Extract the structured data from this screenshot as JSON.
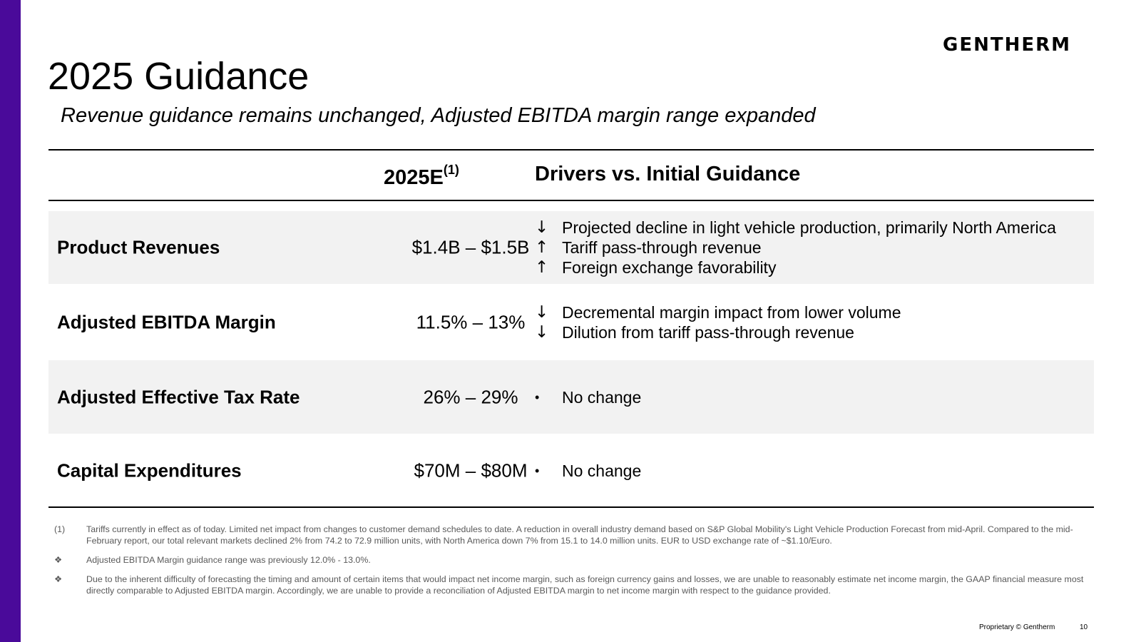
{
  "brand": {
    "logo_text": "GENTHERM",
    "accent_color": "#4a0a9a"
  },
  "slide": {
    "title": "2025 Guidance",
    "subtitle": "Revenue guidance remains unchanged, Adjusted EBITDA margin range expanded"
  },
  "table": {
    "col_value_header": "2025E",
    "col_value_note": "(1)",
    "col_drivers_header": "Drivers vs. Initial Guidance",
    "rows": [
      {
        "metric": "Product Revenues",
        "value": "$1.4B – $1.5B",
        "drivers": [
          {
            "icon": "arrow-down-icon",
            "glyph": "↓",
            "text": "Projected decline in light vehicle production, primarily North America"
          },
          {
            "icon": "arrow-up-icon",
            "glyph": "↑",
            "text": "Tariff pass-through revenue"
          },
          {
            "icon": "arrow-up-icon",
            "glyph": "↑",
            "text": "Foreign exchange favorability"
          }
        ]
      },
      {
        "metric": "Adjusted EBITDA Margin",
        "value": "11.5% – 13%",
        "drivers": [
          {
            "icon": "arrow-down-icon",
            "glyph": "↓",
            "text": "Decremental margin impact from lower volume"
          },
          {
            "icon": "arrow-down-icon",
            "glyph": "↓",
            "text": "Dilution from tariff pass-through revenue"
          }
        ]
      },
      {
        "metric": "Adjusted Effective Tax Rate",
        "value": "26% – 29%",
        "drivers": [
          {
            "icon": "bullet-icon",
            "glyph": "•",
            "text": "No change"
          }
        ]
      },
      {
        "metric": "Capital Expenditures",
        "value": "$70M – $80M",
        "drivers": [
          {
            "icon": "bullet-icon",
            "glyph": "•",
            "text": "No change"
          }
        ]
      }
    ]
  },
  "footnotes": [
    {
      "mark": "(1)",
      "text": "Tariffs currently in effect as of today. Limited net impact from changes to customer demand schedules to date. A reduction in overall industry demand based on S&P Global Mobility's Light Vehicle Production Forecast from mid-April. Compared to the mid-February report, our total relevant markets declined 2% from 74.2 to 72.9 million units, with North America down 7% from 15.1 to 14.0 million units. EUR to USD exchange rate of ~$1.10/Euro."
    },
    {
      "mark": "❖",
      "text": "Adjusted EBITDA Margin guidance range was previously 12.0% - 13.0%."
    },
    {
      "mark": "❖",
      "text": "Due to the inherent difficulty of forecasting the timing and amount of certain items that would impact net income margin, such as foreign currency gains and losses, we are unable to reasonably estimate net income margin, the GAAP financial measure most directly comparable to Adjusted EBITDA margin. Accordingly, we are unable to provide a reconciliation of Adjusted EBITDA margin to net income margin with respect to the guidance provided."
    }
  ],
  "footer": {
    "proprietary": "Proprietary © Gentherm",
    "page_number": "10"
  }
}
